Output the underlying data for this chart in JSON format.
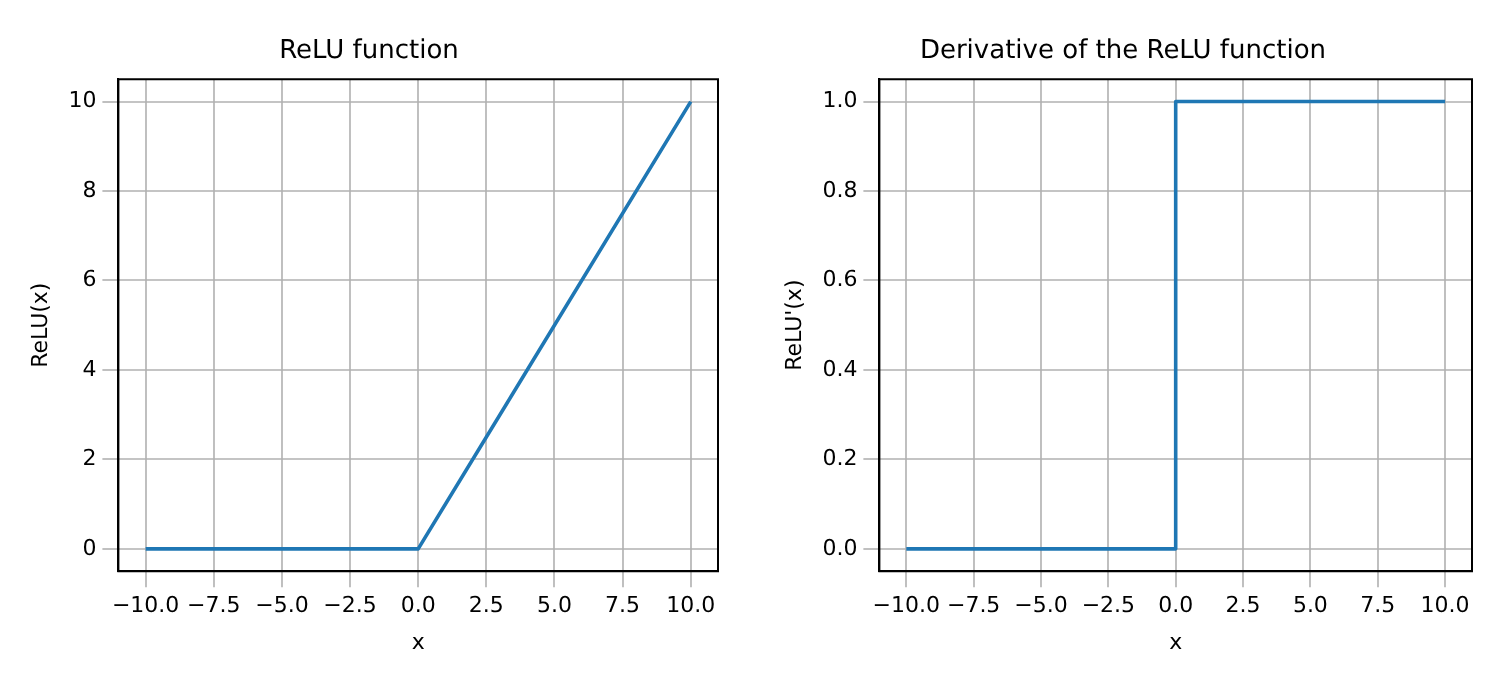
{
  "chart_data": [
    {
      "type": "line",
      "title": "ReLU function",
      "xlabel": "x",
      "ylabel": "ReLU(x)",
      "x": [
        -10,
        0,
        10
      ],
      "series": [
        {
          "color": "#1f77b4",
          "values": [
            0,
            0,
            10
          ]
        }
      ],
      "xlim": [
        -11,
        11
      ],
      "ylim": [
        -0.5,
        10.5
      ],
      "xticks": [
        {
          "value": -10,
          "label": "−10.0"
        },
        {
          "value": -7.5,
          "label": "−7.5"
        },
        {
          "value": -5,
          "label": "−5.0"
        },
        {
          "value": -2.5,
          "label": "−2.5"
        },
        {
          "value": 0,
          "label": "0.0"
        },
        {
          "value": 2.5,
          "label": "2.5"
        },
        {
          "value": 5,
          "label": "5.0"
        },
        {
          "value": 7.5,
          "label": "7.5"
        },
        {
          "value": 10,
          "label": "10.0"
        }
      ],
      "yticks": [
        0,
        2,
        4,
        6,
        8,
        10
      ],
      "grid": true,
      "legend": false
    },
    {
      "type": "line",
      "title": "Derivative of the ReLU function",
      "xlabel": "x",
      "ylabel": "ReLU'(x)",
      "x": [
        -10,
        0,
        0,
        10
      ],
      "series": [
        {
          "color": "#1f77b4",
          "values": [
            0,
            0,
            1,
            1
          ]
        }
      ],
      "xlim": [
        -11,
        11
      ],
      "ylim": [
        -0.05,
        1.05
      ],
      "xticks": [
        {
          "value": -10,
          "label": "−10.0"
        },
        {
          "value": -7.5,
          "label": "−7.5"
        },
        {
          "value": -5,
          "label": "−5.0"
        },
        {
          "value": -2.5,
          "label": "−2.5"
        },
        {
          "value": 0,
          "label": "0.0"
        },
        {
          "value": 2.5,
          "label": "2.5"
        },
        {
          "value": 5,
          "label": "5.0"
        },
        {
          "value": 7.5,
          "label": "7.5"
        },
        {
          "value": 10,
          "label": "10.0"
        }
      ],
      "yticks": [
        {
          "value": 0,
          "label": "0.0"
        },
        {
          "value": 0.2,
          "label": "0.2"
        },
        {
          "value": 0.4,
          "label": "0.4"
        },
        {
          "value": 0.6,
          "label": "0.6"
        },
        {
          "value": 0.8,
          "label": "0.8"
        },
        {
          "value": 1,
          "label": "1.0"
        }
      ],
      "grid": true,
      "legend": false
    }
  ]
}
